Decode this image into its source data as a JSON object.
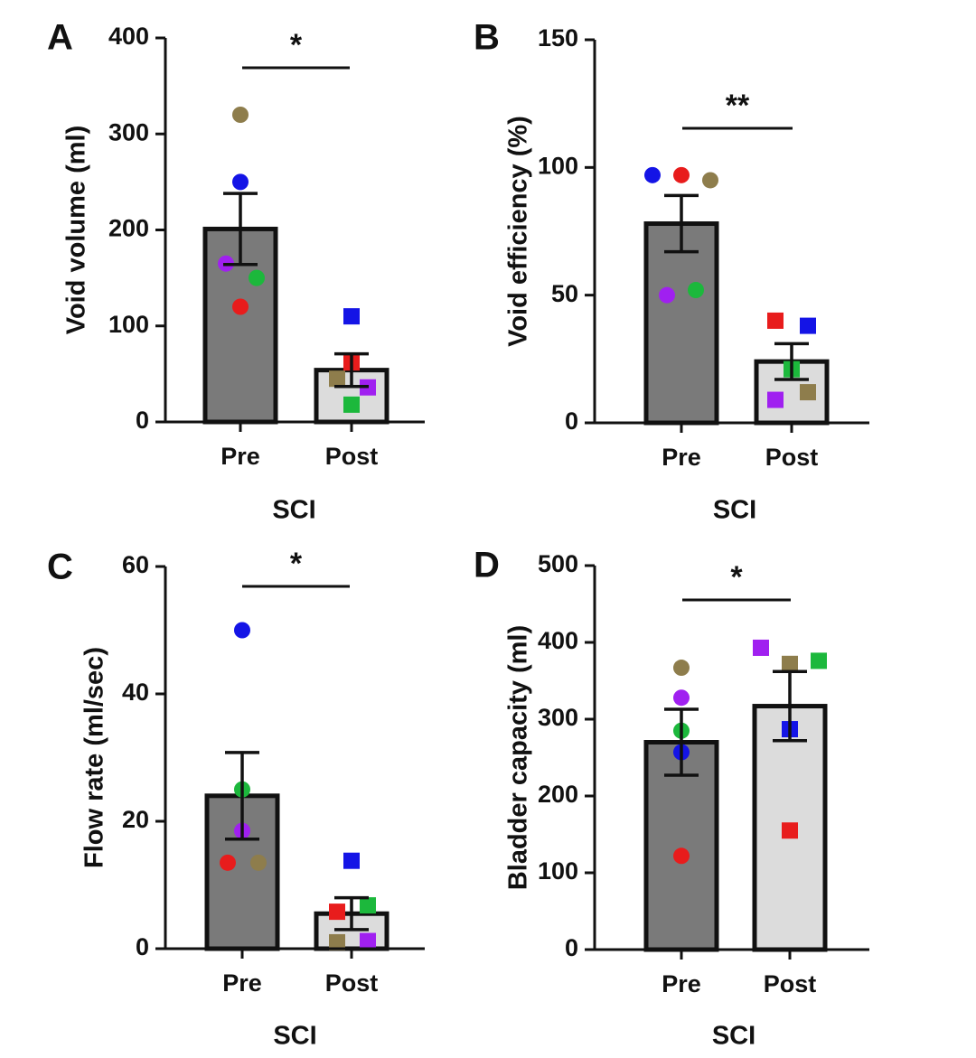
{
  "colors": {
    "pre_bar": "#7a7a7a",
    "post_bar": "#dcdcdc",
    "axis": "#111111",
    "subjects": {
      "blue": "#1414e6",
      "red": "#e81c1c",
      "olive": "#8e7d4c",
      "purple": "#a020f0",
      "green": "#1cb83c"
    }
  },
  "chart_data": [
    {
      "panel": "A",
      "type": "bar",
      "categories": [
        "Pre",
        "Post"
      ],
      "xlabel": "SCI",
      "ylabel": "Void volume (ml)",
      "ylim": [
        0,
        400
      ],
      "yticks": [
        0,
        100,
        200,
        300,
        400
      ],
      "bars": [
        201,
        54
      ],
      "errors": [
        37,
        17
      ],
      "significance": "*",
      "points": [
        [
          {
            "subject": "olive",
            "value": 320
          },
          {
            "subject": "blue",
            "value": 250
          },
          {
            "subject": "purple",
            "value": 165
          },
          {
            "subject": "green",
            "value": 150
          },
          {
            "subject": "red",
            "value": 120
          }
        ],
        [
          {
            "subject": "blue",
            "value": 110
          },
          {
            "subject": "red",
            "value": 62
          },
          {
            "subject": "olive",
            "value": 45
          },
          {
            "subject": "purple",
            "value": 36
          },
          {
            "subject": "green",
            "value": 18
          }
        ]
      ]
    },
    {
      "panel": "B",
      "type": "bar",
      "categories": [
        "Pre",
        "Post"
      ],
      "xlabel": "SCI",
      "ylabel": "Void efficiency (%)",
      "ylim": [
        0,
        150
      ],
      "yticks": [
        0,
        50,
        100,
        150
      ],
      "bars": [
        78,
        24
      ],
      "errors": [
        11,
        7
      ],
      "significance": "**",
      "points": [
        [
          {
            "subject": "blue",
            "value": 97
          },
          {
            "subject": "red",
            "value": 97
          },
          {
            "subject": "olive",
            "value": 95
          },
          {
            "subject": "green",
            "value": 52
          },
          {
            "subject": "purple",
            "value": 50
          }
        ],
        [
          {
            "subject": "red",
            "value": 40
          },
          {
            "subject": "blue",
            "value": 38
          },
          {
            "subject": "green",
            "value": 21
          },
          {
            "subject": "olive",
            "value": 12
          },
          {
            "subject": "purple",
            "value": 9
          }
        ]
      ]
    },
    {
      "panel": "C",
      "type": "bar",
      "categories": [
        "Pre",
        "Post"
      ],
      "xlabel": "SCI",
      "ylabel": "Flow rate (ml/sec)",
      "ylim": [
        0,
        60
      ],
      "yticks": [
        0,
        20,
        40,
        60
      ],
      "bars": [
        24,
        5.5
      ],
      "errors": [
        6.8,
        2.5
      ],
      "significance": "*",
      "points": [
        [
          {
            "subject": "blue",
            "value": 50
          },
          {
            "subject": "green",
            "value": 25
          },
          {
            "subject": "purple",
            "value": 18.5
          },
          {
            "subject": "red",
            "value": 13.5
          },
          {
            "subject": "olive",
            "value": 13.5
          }
        ],
        [
          {
            "subject": "blue",
            "value": 13.8
          },
          {
            "subject": "green",
            "value": 6.8
          },
          {
            "subject": "red",
            "value": 5.8
          },
          {
            "subject": "purple",
            "value": 1.2
          },
          {
            "subject": "olive",
            "value": 1.0
          }
        ]
      ]
    },
    {
      "panel": "D",
      "type": "bar",
      "categories": [
        "Pre",
        "Post"
      ],
      "xlabel": "SCI",
      "ylabel": "Bladder capacity (ml)",
      "ylim": [
        0,
        500
      ],
      "yticks": [
        0,
        100,
        200,
        300,
        400,
        500
      ],
      "bars": [
        270,
        317
      ],
      "errors": [
        43,
        45
      ],
      "significance": "*",
      "points": [
        [
          {
            "subject": "olive",
            "value": 367
          },
          {
            "subject": "purple",
            "value": 328
          },
          {
            "subject": "green",
            "value": 285
          },
          {
            "subject": "blue",
            "value": 257
          },
          {
            "subject": "red",
            "value": 122
          }
        ],
        [
          {
            "subject": "purple",
            "value": 393
          },
          {
            "subject": "green",
            "value": 376
          },
          {
            "subject": "olive",
            "value": 372
          },
          {
            "subject": "blue",
            "value": 287
          },
          {
            "subject": "red",
            "value": 155
          }
        ]
      ]
    }
  ]
}
